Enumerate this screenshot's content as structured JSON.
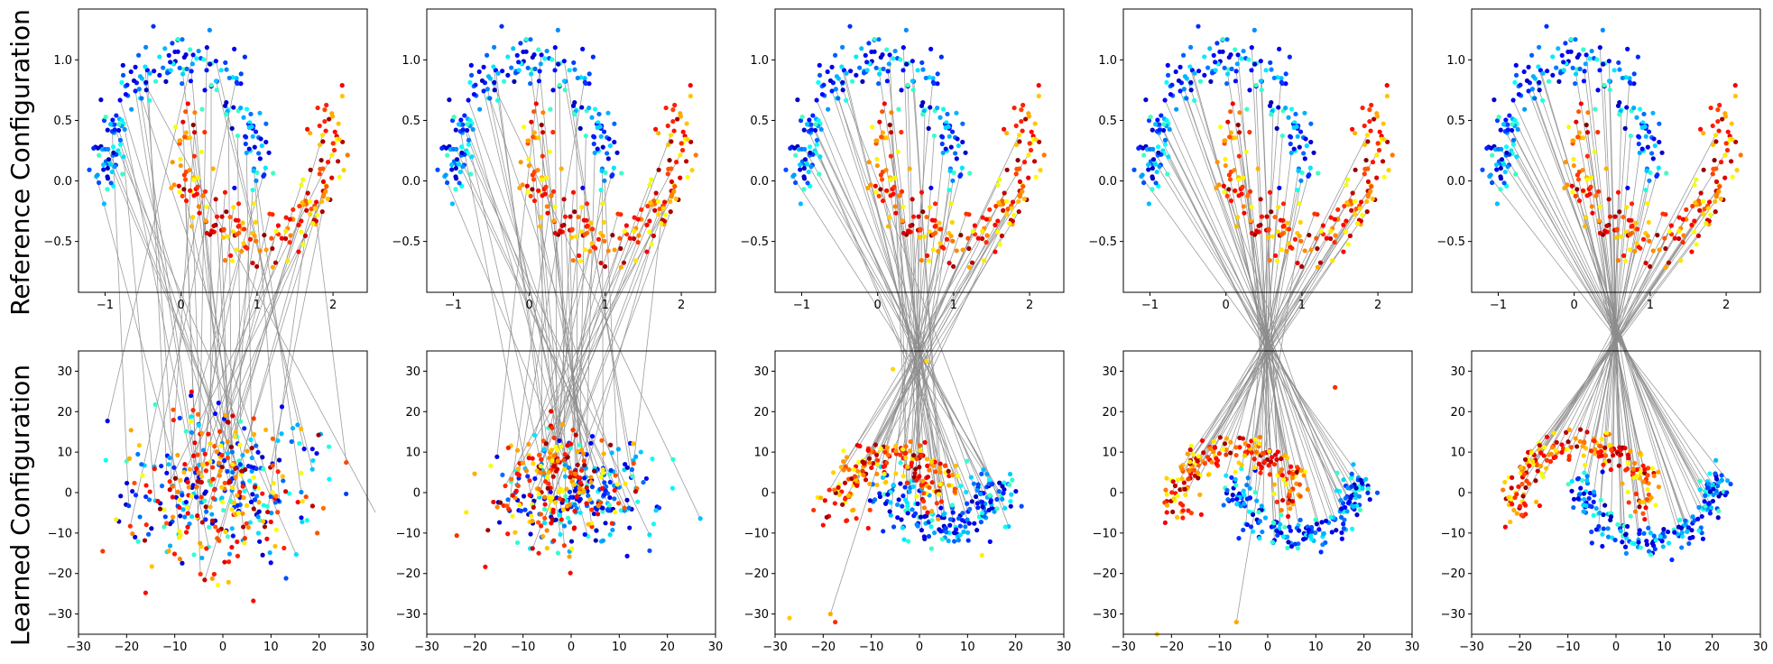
{
  "figure": {
    "row_labels": [
      "Reference Configuration",
      "Learned Configuration"
    ]
  },
  "chart_data": {
    "type": "scatter",
    "panels": 5,
    "rows": 2,
    "colormap": "jet",
    "point_count_per_panel": 400,
    "link_count_per_panel": 60,
    "link_color": "#8c8c8c",
    "reference": {
      "description": "two interleaving moons, same in all 5 columns",
      "xlim": [
        -1.35,
        2.45
      ],
      "ylim": [
        -0.92,
        1.42
      ],
      "xticks": [
        -1,
        0,
        1,
        2
      ],
      "xtick_labels": [
        "−1",
        "0",
        "1",
        "2"
      ],
      "yticks": [
        -0.5,
        0.0,
        0.5,
        1.0
      ],
      "ytick_labels": [
        "−0.5",
        "0.0",
        "0.5",
        "1.0"
      ],
      "noise": 0.12
    },
    "learned": {
      "xlim": [
        -30,
        30
      ],
      "ylim": [
        -35,
        35
      ],
      "xticks": [
        -30,
        -20,
        -10,
        0,
        10,
        20,
        30
      ],
      "xtick_labels": [
        "−30",
        "−20",
        "−10",
        "0",
        "10",
        "20",
        "30"
      ],
      "yticks": [
        -30,
        -20,
        -10,
        0,
        10,
        20,
        30
      ],
      "ytick_labels": [
        "−30",
        "−20",
        "−10",
        "0",
        "10",
        "20",
        "30"
      ],
      "progression": [
        {
          "panel": 1,
          "alpha": 0.0,
          "scatter": 9,
          "outliers": []
        },
        {
          "panel": 2,
          "alpha": 0.3,
          "scatter": 7,
          "outliers": []
        },
        {
          "panel": 3,
          "alpha": 0.75,
          "scatter": 2.2,
          "outliers": [
            {
              "x": -27,
              "y": -31
            },
            {
              "x": -18.5,
              "y": -30
            },
            {
              "x": -17.5,
              "y": -32
            },
            {
              "x": 13,
              "y": -15.5
            },
            {
              "x": 1.5,
              "y": 32.5
            },
            {
              "x": -5.5,
              "y": 30.5
            }
          ]
        },
        {
          "panel": 4,
          "alpha": 0.9,
          "scatter": 1.4,
          "outliers": [
            {
              "x": -23,
              "y": -35
            },
            {
              "x": -6.5,
              "y": -32
            },
            {
              "x": 14,
              "y": 26
            }
          ]
        },
        {
          "panel": 5,
          "alpha": 1.0,
          "scatter": 1.0,
          "outliers": []
        }
      ],
      "moon_scale": {
        "sx": 14,
        "sy": 16,
        "shift_x": -0.5,
        "shift_y": -0.25
      }
    }
  }
}
